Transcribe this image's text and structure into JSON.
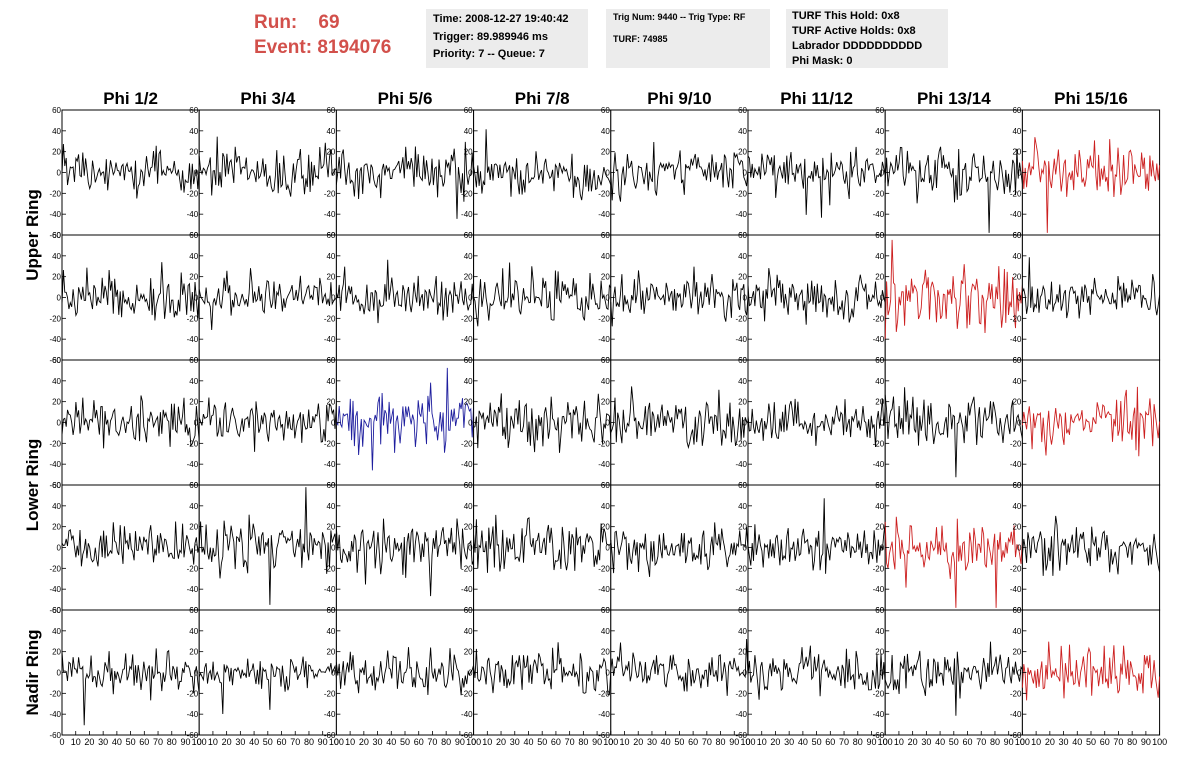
{
  "header": {
    "run_label": "Run:",
    "run_value": "69",
    "event_label": "Event:",
    "event_value": "8194076",
    "colors": {
      "run_text": "#d2504b",
      "info_box_bg": "#ececec"
    }
  },
  "info_boxes": {
    "time": "Time: 2008-12-27 19:40:42",
    "trigger": "Trigger: 89.989946 ms",
    "priority": "Priority: 7 -- Queue: 7",
    "trig_num": "Trig Num: 9440 -- Trig Type: RF",
    "turf": "TURF: 74985",
    "turf_this_hold": "TURF This Hold: 0x8",
    "turf_active_holds": "TURF Active Holds: 0x8",
    "labrador": "Labrador DDDDDDDDDD",
    "phi_mask": "Phi Mask: 0"
  },
  "chart_data": {
    "type": "line",
    "column_titles": [
      "Phi 1/2",
      "Phi 3/4",
      "Phi 5/6",
      "Phi 7/8",
      "Phi 9/10",
      "Phi 11/12",
      "Phi 13/14",
      "Phi 15/16"
    ],
    "row_titles": [
      "Upper Ring",
      "Upper Ring",
      "Lower Ring",
      "Lower Ring",
      "Nadir Ring"
    ],
    "x_range": [
      0,
      100
    ],
    "y_range": [
      -60,
      60
    ],
    "y_ticks": [
      -60,
      -40,
      -20,
      0,
      20,
      40,
      60
    ],
    "x_ticks": [
      0,
      10,
      20,
      30,
      40,
      50,
      60,
      70,
      80,
      90,
      100
    ],
    "grid": false,
    "samples_per_panel": 100,
    "trace_colors": {
      "default": "#000000",
      "triggered": "#cc1f1f",
      "highlight": "#1e1e9e"
    },
    "panels": [
      {
        "row": 0,
        "col": 0,
        "color": "default",
        "amplitude": 16,
        "seed": 11
      },
      {
        "row": 0,
        "col": 1,
        "color": "default",
        "amplitude": 16,
        "seed": 12
      },
      {
        "row": 0,
        "col": 2,
        "color": "default",
        "amplitude": 16,
        "seed": 13
      },
      {
        "row": 0,
        "col": 3,
        "color": "default",
        "amplitude": 16,
        "seed": 14
      },
      {
        "row": 0,
        "col": 4,
        "color": "default",
        "amplitude": 16,
        "seed": 15
      },
      {
        "row": 0,
        "col": 5,
        "color": "default",
        "amplitude": 14,
        "seed": 16
      },
      {
        "row": 0,
        "col": 6,
        "color": "default",
        "amplitude": 17,
        "seed": 17
      },
      {
        "row": 0,
        "col": 7,
        "color": "triggered",
        "amplitude": 22,
        "seed": 18
      },
      {
        "row": 1,
        "col": 0,
        "color": "default",
        "amplitude": 16,
        "seed": 21
      },
      {
        "row": 1,
        "col": 1,
        "color": "default",
        "amplitude": 12,
        "seed": 22
      },
      {
        "row": 1,
        "col": 2,
        "color": "default",
        "amplitude": 14,
        "seed": 23
      },
      {
        "row": 1,
        "col": 3,
        "color": "default",
        "amplitude": 18,
        "seed": 24
      },
      {
        "row": 1,
        "col": 4,
        "color": "default",
        "amplitude": 16,
        "seed": 25
      },
      {
        "row": 1,
        "col": 5,
        "color": "default",
        "amplitude": 16,
        "seed": 26
      },
      {
        "row": 1,
        "col": 6,
        "color": "triggered",
        "amplitude": 20,
        "seed": 27
      },
      {
        "row": 1,
        "col": 7,
        "color": "default",
        "amplitude": 13,
        "seed": 28
      },
      {
        "row": 2,
        "col": 0,
        "color": "default",
        "amplitude": 16,
        "seed": 31
      },
      {
        "row": 2,
        "col": 1,
        "color": "default",
        "amplitude": 15,
        "seed": 32
      },
      {
        "row": 2,
        "col": 2,
        "color": "highlight",
        "amplitude": 20,
        "seed": 33
      },
      {
        "row": 2,
        "col": 3,
        "color": "default",
        "amplitude": 16,
        "seed": 34
      },
      {
        "row": 2,
        "col": 4,
        "color": "default",
        "amplitude": 16,
        "seed": 35
      },
      {
        "row": 2,
        "col": 5,
        "color": "default",
        "amplitude": 15,
        "seed": 36
      },
      {
        "row": 2,
        "col": 6,
        "color": "default",
        "amplitude": 17,
        "seed": 37
      },
      {
        "row": 2,
        "col": 7,
        "color": "triggered",
        "amplitude": 18,
        "seed": 38
      },
      {
        "row": 3,
        "col": 0,
        "color": "default",
        "amplitude": 14,
        "seed": 41
      },
      {
        "row": 3,
        "col": 1,
        "color": "default",
        "amplitude": 18,
        "seed": 42
      },
      {
        "row": 3,
        "col": 2,
        "color": "default",
        "amplitude": 17,
        "seed": 43
      },
      {
        "row": 3,
        "col": 3,
        "color": "default",
        "amplitude": 16,
        "seed": 44
      },
      {
        "row": 3,
        "col": 4,
        "color": "default",
        "amplitude": 16,
        "seed": 45
      },
      {
        "row": 3,
        "col": 5,
        "color": "default",
        "amplitude": 14,
        "seed": 46
      },
      {
        "row": 3,
        "col": 6,
        "color": "triggered",
        "amplitude": 20,
        "seed": 47
      },
      {
        "row": 3,
        "col": 7,
        "color": "default",
        "amplitude": 16,
        "seed": 48
      },
      {
        "row": 4,
        "col": 0,
        "color": "default",
        "amplitude": 15,
        "seed": 51
      },
      {
        "row": 4,
        "col": 1,
        "color": "default",
        "amplitude": 12,
        "seed": 52
      },
      {
        "row": 4,
        "col": 2,
        "color": "default",
        "amplitude": 13,
        "seed": 53
      },
      {
        "row": 4,
        "col": 3,
        "color": "default",
        "amplitude": 14,
        "seed": 54
      },
      {
        "row": 4,
        "col": 4,
        "color": "default",
        "amplitude": 15,
        "seed": 55
      },
      {
        "row": 4,
        "col": 5,
        "color": "default",
        "amplitude": 15,
        "seed": 56
      },
      {
        "row": 4,
        "col": 6,
        "color": "default",
        "amplitude": 14,
        "seed": 57
      },
      {
        "row": 4,
        "col": 7,
        "color": "triggered",
        "amplitude": 18,
        "seed": 58
      }
    ]
  }
}
